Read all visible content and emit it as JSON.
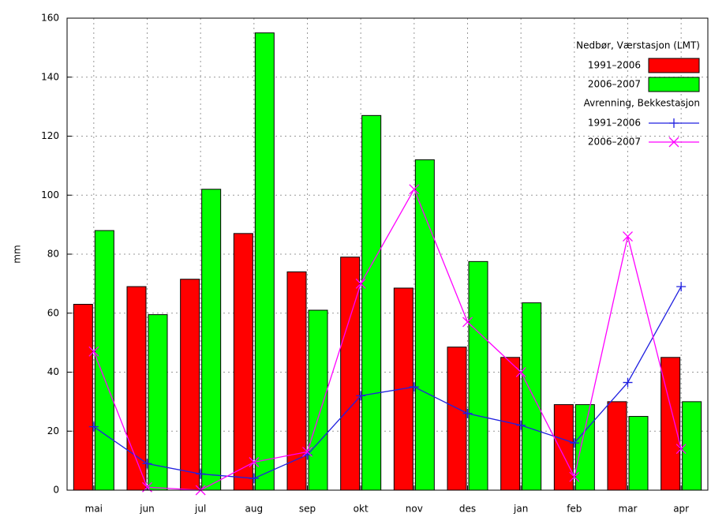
{
  "chart_data": {
    "type": "bar",
    "y_label": "mm",
    "categories": [
      "mai",
      "jun",
      "jul",
      "aug",
      "sep",
      "okt",
      "nov",
      "des",
      "jan",
      "feb",
      "mar",
      "apr"
    ],
    "ylim": [
      0,
      160
    ],
    "yticks": [
      0,
      20,
      40,
      60,
      80,
      100,
      120,
      140,
      160
    ],
    "grid": true,
    "groups": [
      {
        "name": "Nedbør, Værstasjon (LMT)",
        "type": "bar",
        "series": [
          {
            "name": "1991–2006",
            "color": "#ff0000",
            "values": [
              63,
              69,
              71.5,
              87,
              74,
              79,
              68.5,
              48.5,
              45,
              29,
              30,
              45
            ]
          },
          {
            "name": "2006–2007",
            "color": "#00ff00",
            "values": [
              88,
              59.5,
              102,
              155,
              61,
              127,
              112,
              77.5,
              63.5,
              29,
              25,
              30
            ]
          }
        ]
      },
      {
        "name": "Avrenning, Bekkestasjon",
        "type": "line",
        "series": [
          {
            "name": "1991–2006",
            "color": "#2020e0",
            "marker": "plus",
            "values": [
              21.5,
              9,
              5.5,
              4,
              12,
              32,
              35,
              26,
              22,
              16,
              36.5,
              69
            ]
          },
          {
            "name": "2006–2007",
            "color": "#ff00ff",
            "marker": "cross",
            "values": [
              47,
              1,
              0,
              9.5,
              13,
              70,
              102,
              57,
              40,
              4.5,
              86,
              14
            ]
          }
        ]
      }
    ]
  }
}
